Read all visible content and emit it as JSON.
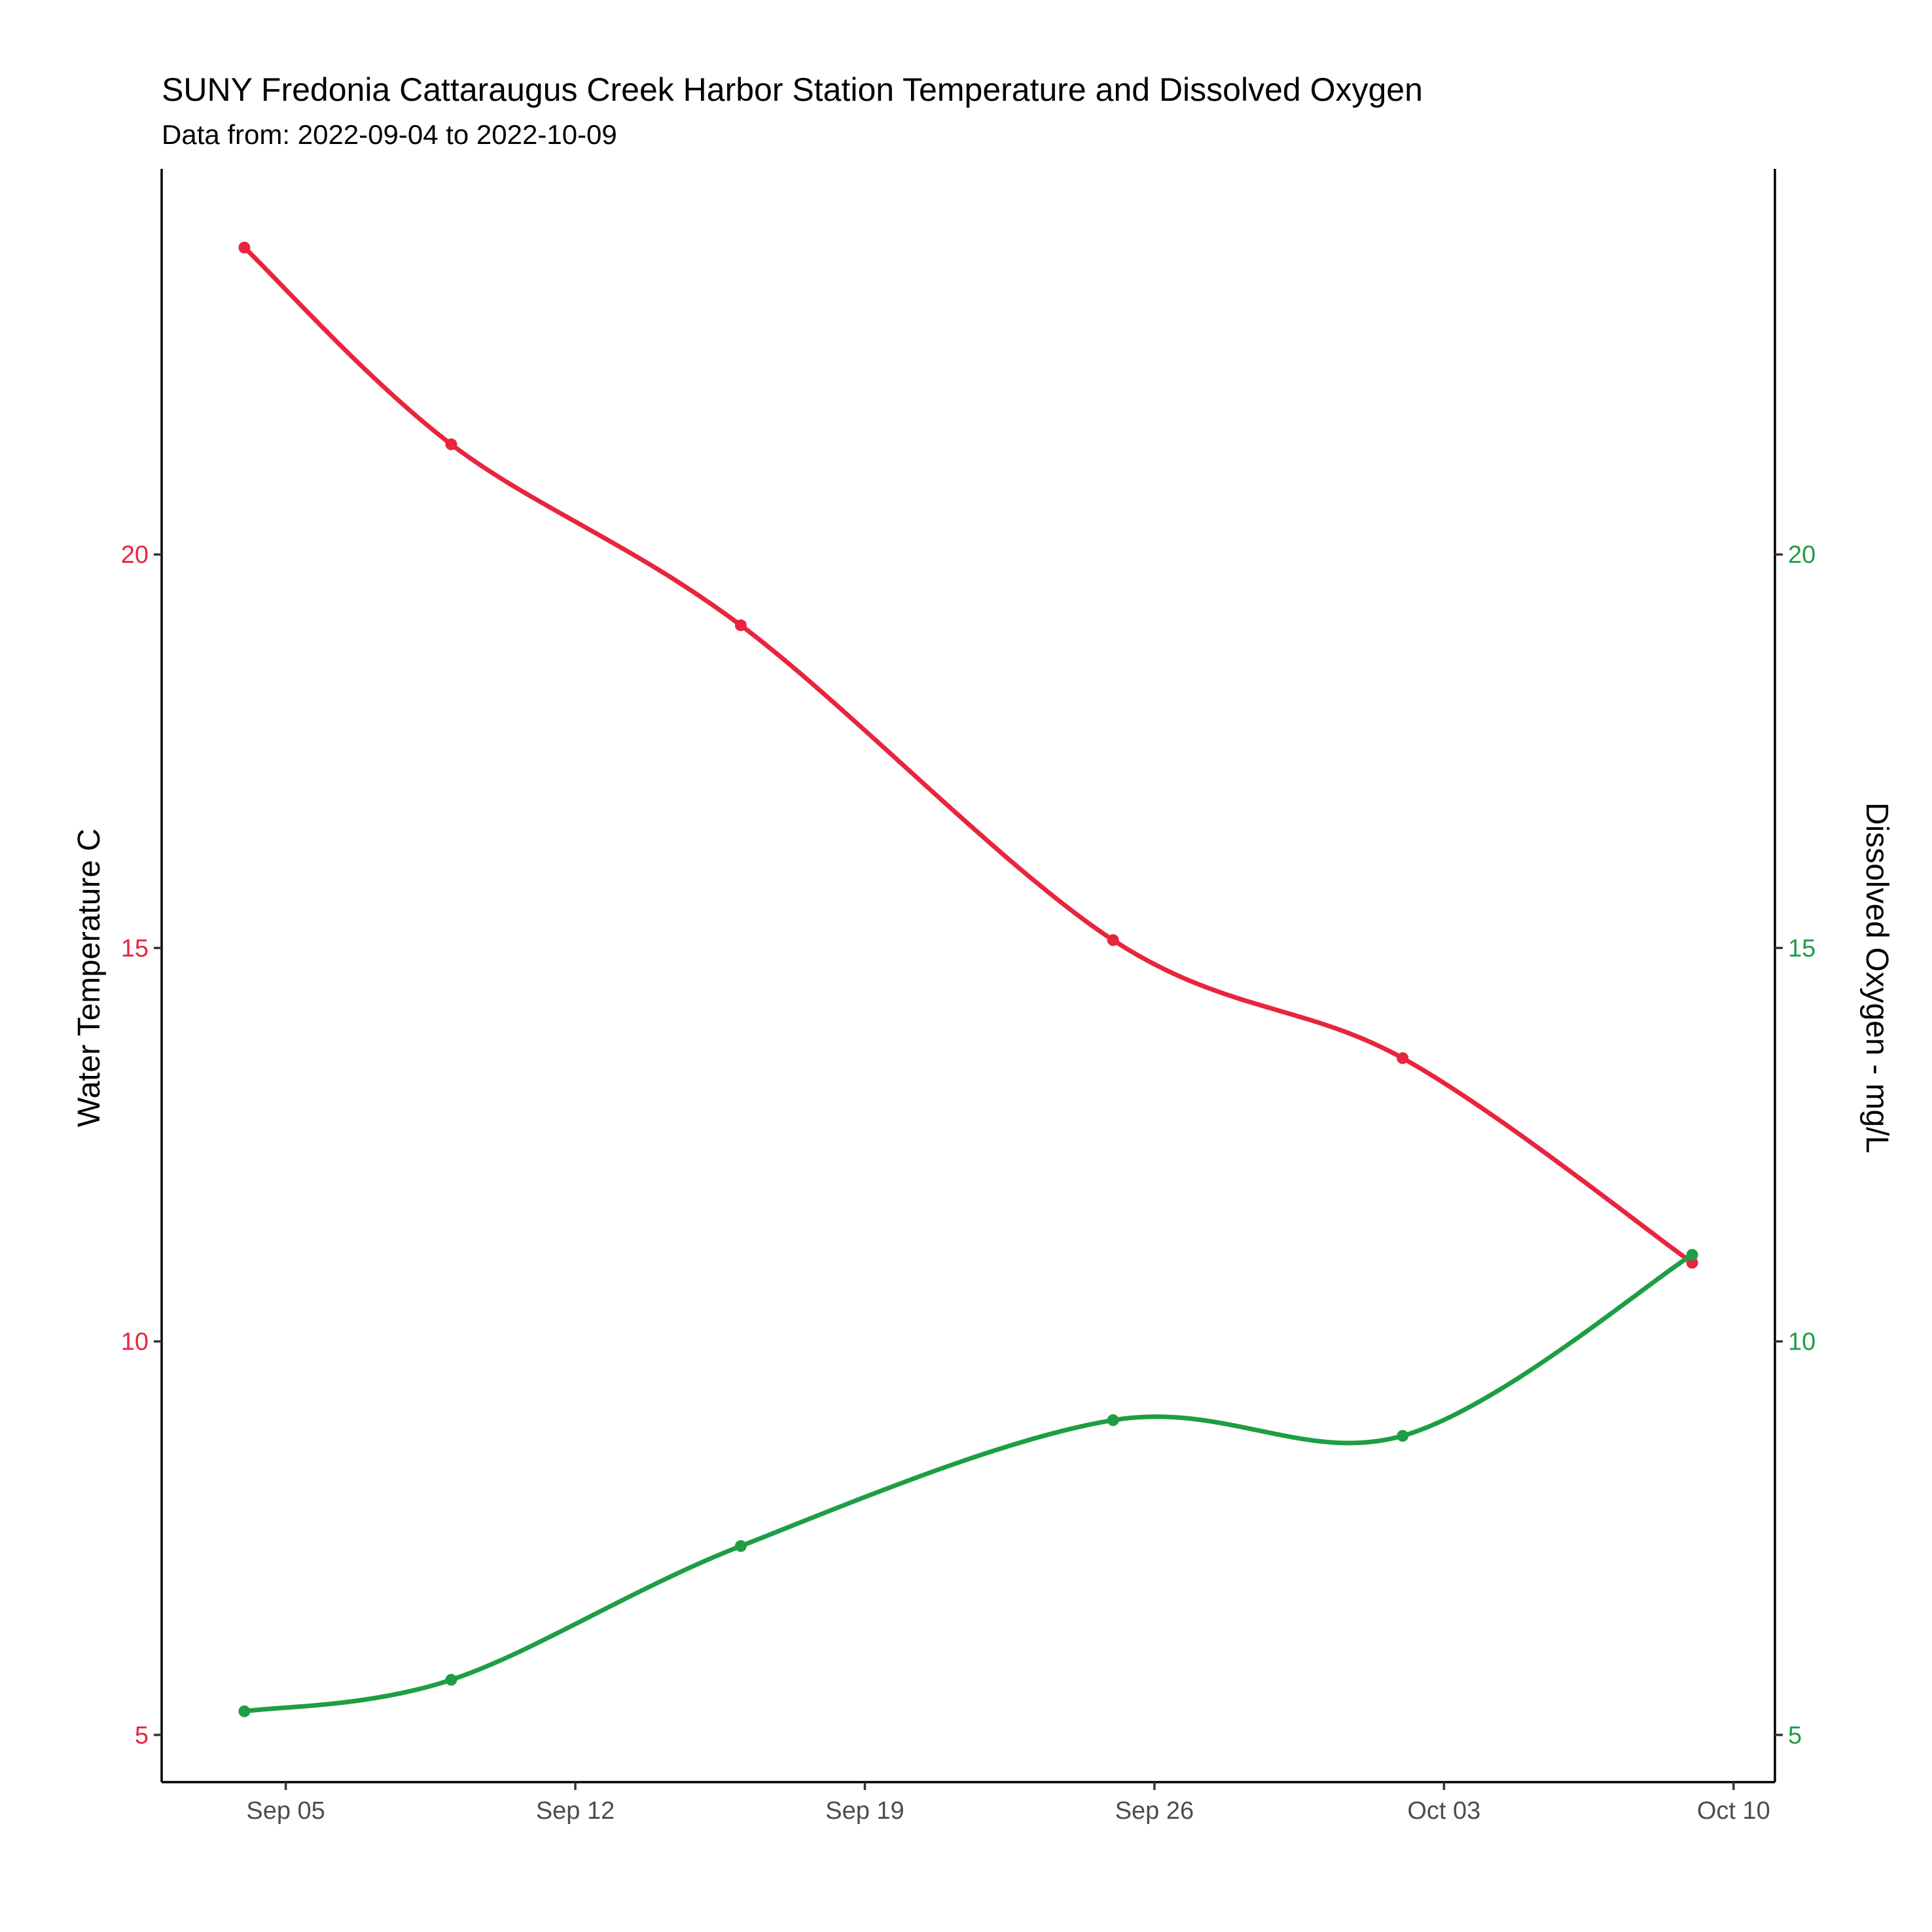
{
  "chart_data": {
    "type": "line",
    "title": "SUNY Fredonia Cattaraugus Creek Harbor Station Temperature and Dissolved Oxygen",
    "subtitle": "Data from: 2022-09-04 to 2022-10-09",
    "xlabel": "",
    "ylabel_left": "Water Temperature C",
    "ylabel_right": "Dissolved Oxygen - mg/L",
    "x_ticks": [
      "Sep 05",
      "Sep 12",
      "Sep 19",
      "Sep 26",
      "Oct 03",
      "Oct 10"
    ],
    "x_tick_dates": [
      "2022-09-05",
      "2022-09-12",
      "2022-09-19",
      "2022-09-26",
      "2022-10-03",
      "2022-10-10"
    ],
    "xlim": [
      "2022-09-02",
      "2022-10-11"
    ],
    "ylim": [
      4.4,
      24.9
    ],
    "y_ticks_left": [
      "5",
      "10",
      "15",
      "20"
    ],
    "y_ticks_right": [
      "5",
      "10",
      "15",
      "20"
    ],
    "grid": false,
    "legend": "none",
    "dates": [
      "2022-09-04",
      "2022-09-09",
      "2022-09-16",
      "2022-09-25",
      "2022-10-02",
      "2022-10-09"
    ],
    "series": [
      {
        "axis": "left",
        "color": "#E8253D",
        "values": [
          23.9,
          21.4,
          19.1,
          15.1,
          13.6,
          11.0
        ]
      },
      {
        "axis": "right",
        "color": "#1E9E44",
        "values": [
          5.3,
          5.7,
          7.4,
          9.0,
          8.8,
          11.1
        ]
      }
    ]
  }
}
